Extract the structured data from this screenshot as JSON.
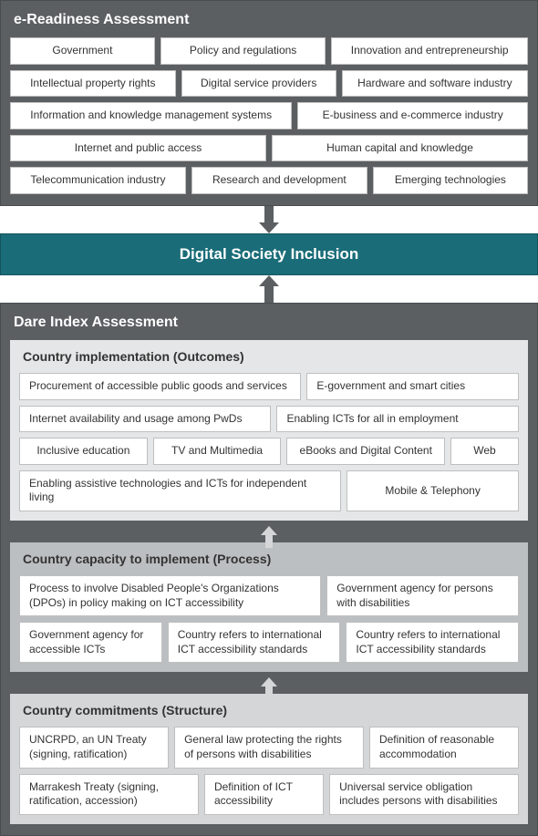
{
  "colors": {
    "panel_dark_bg": "#5c5f62",
    "panel_dark_border": "#4a4d50",
    "panel_text": "#ffffff",
    "box_bg": "#ffffff",
    "box_border": "#bfbfbf",
    "box_text": "#333333",
    "center_bg": "#1a6c78",
    "center_text": "#ffffff",
    "arrow_dark": "#5c5f62",
    "sub_outcomes_bg": "#e5e6e7",
    "sub_outcomes_text": "#333333",
    "sub_process_bg": "#bcbfc1",
    "sub_process_text": "#333333",
    "sub_structure_bg": "#d4d6d7",
    "sub_structure_text": "#333333",
    "arrow_light": "#d4d6d7"
  },
  "ereadiness": {
    "title": "e-Readiness Assessment",
    "items": [
      "Government",
      "Policy and regulations",
      "Innovation and entrepreneurship",
      "Intellectual property rights",
      "Digital service providers",
      "Hardware and software industry",
      "Information and knowledge management systems",
      "E-business and e-commerce industry",
      "Internet and public access",
      "Human capital and knowledge",
      "Telecommunication industry",
      "Research and development",
      "Emerging technologies"
    ]
  },
  "center": {
    "title": "Digital Society Inclusion"
  },
  "dare": {
    "title": "Dare Index Assessment",
    "outcomes": {
      "title": "Country implementation (Outcomes)",
      "items": [
        "Procurement of accessible public goods and services",
        "E-government and smart cities",
        "Internet availability and usage among PwDs",
        "Enabling ICTs for all in employment",
        "Inclusive education",
        "TV and Multimedia",
        "eBooks and Digital Content",
        "Web",
        "Enabling assistive technologies and ICTs for independent living",
        "Mobile & Telephony"
      ]
    },
    "process": {
      "title": "Country capacity to implement (Process)",
      "items": [
        "Process to involve Disabled People's Organizations (DPOs) in policy making on ICT accessibility",
        "Government agency for persons with disabilities",
        "Government agency for accessible ICTs",
        "Country refers to international ICT accessibility standards",
        "Country refers to international ICT accessibility standards"
      ]
    },
    "structure": {
      "title": "Country commitments (Structure)",
      "items": [
        "UNCRPD, an UN Treaty (signing, ratification)",
        "General law protecting the rights of  persons with disabilities",
        "Definition of reasonable accommodation",
        "Marrakesh Treaty (signing, ratification, accession)",
        "Definition of ICT accessibility",
        "Universal service obligation includes persons with disabilities"
      ]
    }
  }
}
